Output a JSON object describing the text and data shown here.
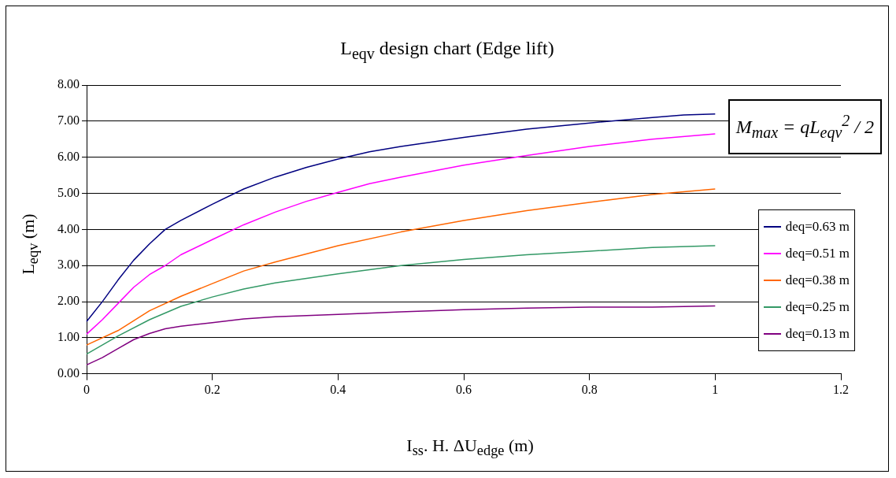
{
  "chart_data": {
    "type": "line",
    "title": "L$_{eqv}$ design chart (Edge lift)",
    "xlabel": "I$_{ss}$. H. ΔU$_{edge}$ (m)",
    "ylabel": "L$_{eqv}$ (m)",
    "annotations": [
      "M$_{max}$ = qL$_{eqv}$$^{2}$ / 2"
    ],
    "xlim": [
      0,
      1.2
    ],
    "xticks": [
      0,
      0.2,
      0.4,
      0.6,
      0.8,
      1,
      1.2
    ],
    "ylim": [
      0,
      8
    ],
    "yticks": [
      {
        "value": 0,
        "label": "0.00"
      },
      {
        "value": 1,
        "label": "1.00"
      },
      {
        "value": 2,
        "label": "2.00"
      },
      {
        "value": 3,
        "label": "3.00"
      },
      {
        "value": 4,
        "label": "4.00"
      },
      {
        "value": 5,
        "label": "5.00"
      },
      {
        "value": 6,
        "label": "6.00"
      },
      {
        "value": 7,
        "label": "7.00"
      },
      {
        "value": 8,
        "label": "8.00"
      }
    ],
    "grid": "y",
    "legend": "right",
    "marker": "none",
    "line_style": "solid",
    "series": [
      {
        "name": "deq=0.63 m",
        "color": "#000080",
        "x": [
          0,
          0.025,
          0.05,
          0.075,
          0.1,
          0.125,
          0.15,
          0.2,
          0.25,
          0.3,
          0.35,
          0.4,
          0.45,
          0.5,
          0.6,
          0.7,
          0.8,
          0.9,
          0.95,
          1
        ],
        "values": [
          1.45,
          2.0,
          2.6,
          3.15,
          3.6,
          4.0,
          4.25,
          4.7,
          5.12,
          5.45,
          5.72,
          5.95,
          6.15,
          6.3,
          6.55,
          6.78,
          6.95,
          7.1,
          7.17,
          7.2
        ]
      },
      {
        "name": "deq=0.51 m",
        "color": "#ff00ff",
        "x": [
          0,
          0.025,
          0.05,
          0.075,
          0.1,
          0.125,
          0.15,
          0.2,
          0.25,
          0.3,
          0.35,
          0.4,
          0.45,
          0.5,
          0.6,
          0.7,
          0.8,
          0.9,
          1
        ],
        "values": [
          1.1,
          1.5,
          1.95,
          2.4,
          2.75,
          3.0,
          3.3,
          3.72,
          4.13,
          4.48,
          4.78,
          5.03,
          5.27,
          5.45,
          5.78,
          6.05,
          6.3,
          6.5,
          6.65
        ]
      },
      {
        "name": "deq=0.38 m",
        "color": "#ff6600",
        "x": [
          0,
          0.05,
          0.1,
          0.15,
          0.2,
          0.25,
          0.3,
          0.4,
          0.5,
          0.6,
          0.7,
          0.8,
          0.9,
          1
        ],
        "values": [
          0.8,
          1.2,
          1.75,
          2.15,
          2.5,
          2.85,
          3.1,
          3.55,
          3.93,
          4.25,
          4.52,
          4.75,
          4.97,
          5.12
        ]
      },
      {
        "name": "deq=0.25 m",
        "color": "#339966",
        "x": [
          0,
          0.05,
          0.1,
          0.15,
          0.2,
          0.25,
          0.3,
          0.4,
          0.5,
          0.6,
          0.7,
          0.8,
          0.9,
          1
        ],
        "values": [
          0.55,
          1.05,
          1.5,
          1.87,
          2.13,
          2.35,
          2.52,
          2.77,
          3.0,
          3.17,
          3.3,
          3.4,
          3.5,
          3.55
        ]
      },
      {
        "name": "deq=0.13 m",
        "color": "#800080",
        "x": [
          0,
          0.025,
          0.05,
          0.075,
          0.1,
          0.125,
          0.15,
          0.2,
          0.25,
          0.3,
          0.4,
          0.5,
          0.6,
          0.7,
          0.8,
          0.9,
          1
        ],
        "values": [
          0.25,
          0.45,
          0.7,
          0.95,
          1.12,
          1.25,
          1.32,
          1.42,
          1.52,
          1.58,
          1.65,
          1.72,
          1.78,
          1.82,
          1.85,
          1.85,
          1.88
        ]
      }
    ]
  }
}
